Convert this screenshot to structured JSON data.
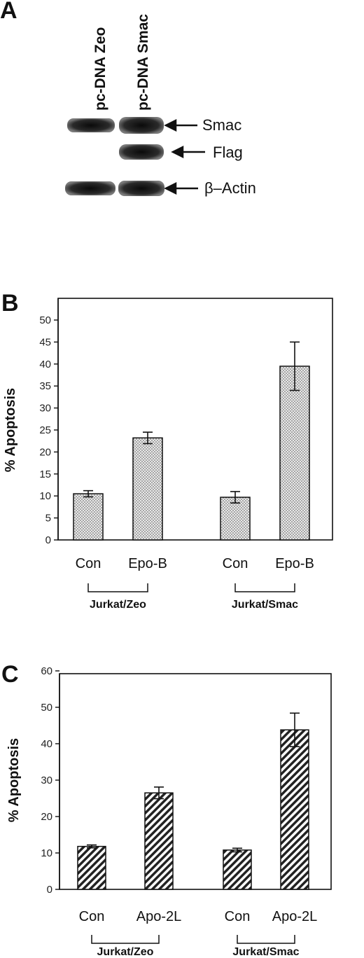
{
  "panelA": {
    "letter": "A",
    "lanes": [
      "pc-DNA Zeo",
      "pc-DNA Smac"
    ],
    "bands": [
      {
        "label": "Smac",
        "lanes": [
          true,
          true
        ]
      },
      {
        "label": "Flag",
        "lanes": [
          false,
          true
        ]
      },
      {
        "label": "β–Actin",
        "lanes": [
          true,
          true
        ]
      }
    ]
  },
  "chart_data": [
    {
      "panel": "B",
      "type": "bar",
      "ylabel": "% Apoptosis",
      "ylim": [
        0,
        50
      ],
      "yticks": [
        0,
        5,
        10,
        15,
        20,
        25,
        30,
        35,
        40,
        45,
        50
      ],
      "categories": [
        "Con",
        "Epo-B",
        "Con",
        "Epo-B"
      ],
      "groups": [
        "Jurkat/Zeo",
        "Jurkat/Smac"
      ],
      "values": [
        10.5,
        23.2,
        9.7,
        39.5
      ],
      "errors": [
        0.7,
        1.3,
        1.3,
        5.5
      ],
      "bar_pattern": "dotted",
      "grid": false
    },
    {
      "panel": "C",
      "type": "bar",
      "ylabel": "% Apoptosis",
      "ylim": [
        0,
        60
      ],
      "yticks": [
        0,
        10,
        20,
        30,
        40,
        50,
        60
      ],
      "categories": [
        "Con",
        "Apo-2L",
        "Con",
        "Apo-2L"
      ],
      "groups": [
        "Jurkat/Zeo",
        "Jurkat/Smac"
      ],
      "values": [
        11.8,
        26.5,
        10.8,
        43.8
      ],
      "errors": [
        0.4,
        1.6,
        0.5,
        4.6
      ],
      "bar_pattern": "hatched",
      "grid": false
    }
  ]
}
